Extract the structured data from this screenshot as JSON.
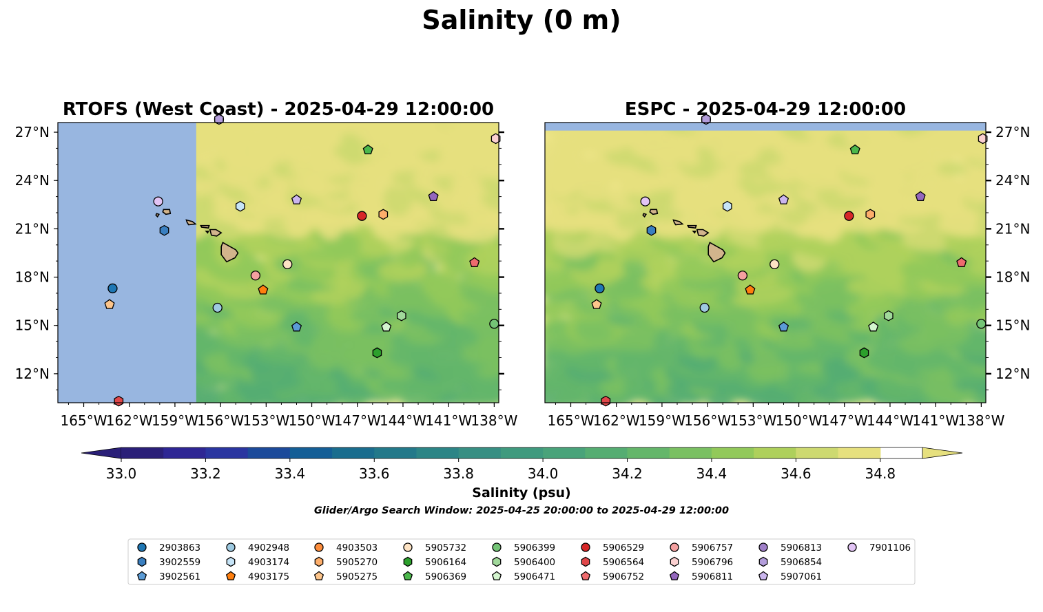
{
  "suptitle": "Salinity (0 m)",
  "colorbar": {
    "label": "Salinity (psu)",
    "ticks": [
      "33.0",
      "33.2",
      "33.4",
      "33.6",
      "33.8",
      "34.0",
      "34.2",
      "34.4",
      "34.6",
      "34.8"
    ],
    "min": 33.0,
    "max": 34.9,
    "colors": [
      "#2a1f78",
      "#2e2694",
      "#2a35a0",
      "#1c4a9a",
      "#145e96",
      "#1a6d8e",
      "#23798a",
      "#2c8586",
      "#378f83",
      "#3f9a7e",
      "#49a37a",
      "#55ad72",
      "#64b66a",
      "#7ac062",
      "#92c95a",
      "#aed05b",
      "#cdd970",
      "#e6e07e"
    ]
  },
  "search_window": "Glider/Argo Search Window: 2025-04-25 20:00:00 to 2025-04-29 12:00:00",
  "chart_data": [
    {
      "type": "map",
      "title": "RTOFS (West Coast) - 2025-04-29 12:00:00",
      "xlim": [
        -166.7,
        -137.7
      ],
      "ylim": [
        10.2,
        27.6
      ],
      "xticks": [
        "165°W",
        "162°W",
        "159°W",
        "156°W",
        "153°W",
        "150°W",
        "147°W",
        "144°W",
        "141°W",
        "138°W"
      ],
      "yticks": [
        "27°N",
        "24°N",
        "21°N",
        "18°N",
        "15°N",
        "12°N"
      ],
      "no_data_west_of": -157.6,
      "no_data_north_of": null,
      "floats": [
        {
          "id": "2903863",
          "lon": -163.1,
          "lat": 17.3
        },
        {
          "id": "3902559",
          "lon": -159.7,
          "lat": 20.9
        },
        {
          "id": "3902561",
          "lon": -151.0,
          "lat": 14.9
        },
        {
          "id": "4902948",
          "lon": -156.2,
          "lat": 16.1
        },
        {
          "id": "4903174",
          "lon": -154.7,
          "lat": 22.4
        },
        {
          "id": "4903175",
          "lon": -153.2,
          "lat": 17.2
        },
        {
          "id": "5905270",
          "lon": -145.3,
          "lat": 21.9
        },
        {
          "id": "5905275",
          "lon": -163.3,
          "lat": 16.3
        },
        {
          "id": "5905732",
          "lon": -151.6,
          "lat": 18.8
        },
        {
          "id": "5906164",
          "lon": -145.7,
          "lat": 13.3
        },
        {
          "id": "5906369",
          "lon": -146.3,
          "lat": 25.9
        },
        {
          "id": "5906399",
          "lon": -138.0,
          "lat": 15.1
        },
        {
          "id": "5906400",
          "lon": -144.1,
          "lat": 15.6
        },
        {
          "id": "5906471",
          "lon": -145.1,
          "lat": 14.9
        },
        {
          "id": "5906529",
          "lon": -146.7,
          "lat": 21.8
        },
        {
          "id": "5906564",
          "lon": -162.7,
          "lat": 10.3
        },
        {
          "id": "5906752",
          "lon": -139.3,
          "lat": 18.9
        },
        {
          "id": "5906757",
          "lon": -153.7,
          "lat": 18.1
        },
        {
          "id": "5906796",
          "lon": -137.9,
          "lat": 26.6
        },
        {
          "id": "5906811",
          "lon": -142.0,
          "lat": 23.0
        },
        {
          "id": "5906813",
          "lon": -156.1,
          "lat": 27.8
        },
        {
          "id": "5906854",
          "lon": -156.1,
          "lat": 27.8
        },
        {
          "id": "5907061",
          "lon": -151.0,
          "lat": 22.8
        },
        {
          "id": "7901106",
          "lon": -160.1,
          "lat": 22.7
        }
      ]
    },
    {
      "type": "map",
      "title": "ESPC - 2025-04-29 12:00:00",
      "xlim": [
        -166.7,
        -137.7
      ],
      "ylim": [
        10.2,
        27.6
      ],
      "xticks": [
        "165°W",
        "162°W",
        "159°W",
        "156°W",
        "153°W",
        "150°W",
        "147°W",
        "144°W",
        "141°W",
        "138°W"
      ],
      "yticks": [
        "27°N",
        "24°N",
        "21°N",
        "18°N",
        "15°N",
        "12°N"
      ],
      "no_data_west_of": null,
      "no_data_north_of": 27.1,
      "floats": [
        {
          "id": "2903863",
          "lon": -163.1,
          "lat": 17.3
        },
        {
          "id": "3902559",
          "lon": -159.7,
          "lat": 20.9
        },
        {
          "id": "3902561",
          "lon": -151.0,
          "lat": 14.9
        },
        {
          "id": "4902948",
          "lon": -156.2,
          "lat": 16.1
        },
        {
          "id": "4903174",
          "lon": -154.7,
          "lat": 22.4
        },
        {
          "id": "4903175",
          "lon": -153.2,
          "lat": 17.2
        },
        {
          "id": "5905270",
          "lon": -145.3,
          "lat": 21.9
        },
        {
          "id": "5905275",
          "lon": -163.3,
          "lat": 16.3
        },
        {
          "id": "5905732",
          "lon": -151.6,
          "lat": 18.8
        },
        {
          "id": "5906164",
          "lon": -145.7,
          "lat": 13.3
        },
        {
          "id": "5906369",
          "lon": -146.3,
          "lat": 25.9
        },
        {
          "id": "5906399",
          "lon": -138.0,
          "lat": 15.1
        },
        {
          "id": "5906400",
          "lon": -144.1,
          "lat": 15.6
        },
        {
          "id": "5906471",
          "lon": -145.1,
          "lat": 14.9
        },
        {
          "id": "5906529",
          "lon": -146.7,
          "lat": 21.8
        },
        {
          "id": "5906564",
          "lon": -162.7,
          "lat": 10.3
        },
        {
          "id": "5906752",
          "lon": -139.3,
          "lat": 18.9
        },
        {
          "id": "5906757",
          "lon": -153.7,
          "lat": 18.1
        },
        {
          "id": "5906796",
          "lon": -137.9,
          "lat": 26.6
        },
        {
          "id": "5906811",
          "lon": -142.0,
          "lat": 23.0
        },
        {
          "id": "5906813",
          "lon": -156.1,
          "lat": 27.8
        },
        {
          "id": "5906854",
          "lon": -156.1,
          "lat": 27.8
        },
        {
          "id": "5907061",
          "lon": -151.0,
          "lat": 22.8
        },
        {
          "id": "7901106",
          "lon": -160.1,
          "lat": 22.7
        }
      ]
    }
  ],
  "legend": [
    {
      "id": "2903863",
      "color": "#1f77b4",
      "marker": "circle"
    },
    {
      "id": "3902559",
      "color": "#3a7fc0",
      "marker": "hexagon"
    },
    {
      "id": "3902561",
      "color": "#5b9bd5",
      "marker": "pentagon"
    },
    {
      "id": "4902948",
      "color": "#9ecae1",
      "marker": "circle"
    },
    {
      "id": "4903174",
      "color": "#c6e4f7",
      "marker": "hexagon"
    },
    {
      "id": "4903175",
      "color": "#ff7f0e",
      "marker": "pentagon"
    },
    {
      "id": "4903503",
      "color": "#fd8d3c",
      "marker": "circle"
    },
    {
      "id": "5905270",
      "color": "#fdae6b",
      "marker": "hexagon"
    },
    {
      "id": "5905275",
      "color": "#fdc58b",
      "marker": "pentagon"
    },
    {
      "id": "5905732",
      "color": "#fde3c4",
      "marker": "circle"
    },
    {
      "id": "5906164",
      "color": "#2ca02c",
      "marker": "hexagon"
    },
    {
      "id": "5906369",
      "color": "#4cb84c",
      "marker": "pentagon"
    },
    {
      "id": "5906399",
      "color": "#74c476",
      "marker": "circle"
    },
    {
      "id": "5906400",
      "color": "#a1d99b",
      "marker": "hexagon"
    },
    {
      "id": "5906471",
      "color": "#d4f5cf",
      "marker": "pentagon"
    },
    {
      "id": "5906529",
      "color": "#d62728",
      "marker": "circle"
    },
    {
      "id": "5906564",
      "color": "#e0474a",
      "marker": "hexagon"
    },
    {
      "id": "5906752",
      "color": "#ee6b6e",
      "marker": "pentagon"
    },
    {
      "id": "5906757",
      "color": "#f4a0a0",
      "marker": "circle"
    },
    {
      "id": "5906796",
      "color": "#fbd0d0",
      "marker": "hexagon"
    },
    {
      "id": "5906811",
      "color": "#9467bd",
      "marker": "pentagon"
    },
    {
      "id": "5906813",
      "color": "#9f7fc8",
      "marker": "circle"
    },
    {
      "id": "5906854",
      "color": "#b39ddb",
      "marker": "hexagon"
    },
    {
      "id": "5907061",
      "color": "#cbb6ee",
      "marker": "pentagon"
    },
    {
      "id": "7901106",
      "color": "#e2c4f5",
      "marker": "circle"
    }
  ],
  "colors": {
    "ocean_yellow": "#fbed9a",
    "no_data_blue": "#98b6e0",
    "land": "#d2b48c"
  }
}
